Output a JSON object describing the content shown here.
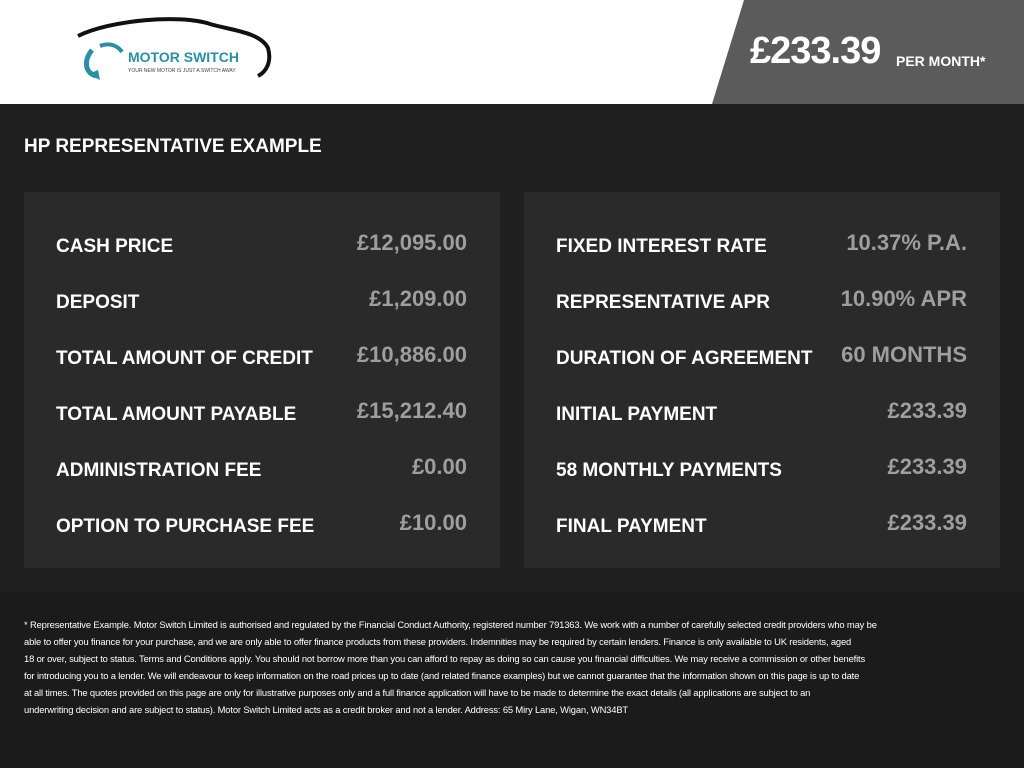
{
  "header": {
    "logo": {
      "name": "MOTOR SWITCH",
      "tagline": "YOUR NEW MOTOR IS JUST A SWITCH AWAY"
    },
    "price": "£233.39",
    "price_suffix": "PER MONTH*"
  },
  "section": {
    "title": "HP REPRESENTATIVE EXAMPLE",
    "left": [
      {
        "label": "CASH PRICE",
        "value": "£12,095.00"
      },
      {
        "label": "DEPOSIT",
        "value": "£1,209.00"
      },
      {
        "label": "TOTAL AMOUNT OF CREDIT",
        "value": "£10,886.00"
      },
      {
        "label": "TOTAL AMOUNT PAYABLE",
        "value": "£15,212.40"
      },
      {
        "label": "ADMINISTRATION FEE",
        "value": "£0.00"
      },
      {
        "label": "OPTION TO PURCHASE FEE",
        "value": "£10.00"
      }
    ],
    "right": [
      {
        "label": "FIXED INTEREST RATE",
        "value": "10.37% P.A."
      },
      {
        "label": "REPRESENTATIVE APR",
        "value": "10.90% APR"
      },
      {
        "label": "DURATION OF AGREEMENT",
        "value": "60 MONTHS"
      },
      {
        "label": "INITIAL PAYMENT",
        "value": "£233.39"
      },
      {
        "label": "58 MONTHLY PAYMENTS",
        "value": "£233.39"
      },
      {
        "label": "FINAL PAYMENT",
        "value": "£233.39"
      }
    ]
  },
  "disclaimer": [
    "* Representative Example. Motor Switch Limited  is authorised and regulated by the Financial Conduct Authority, registered number 791363. We work with a number of carefully selected credit providers who may be",
    "able to offer you finance for your purchase, and we are only able to offer finance products from these providers. Indemnities may be required by certain lenders. Finance is only available to UK residents, aged",
    "18 or over, subject to status. Terms and Conditions apply. You should not borrow more than you can afford to repay as doing so can cause you financial difficulties. We may receive a commission or other benefits",
    "for introducing you to a lender. We will endeavour to keep information on the road prices up to date (and related finance examples) but we cannot guarantee that the information shown on this page is up to date",
    "at all times. The quotes provided on this page are only for illustrative purposes only and a full finance application will have to be made to determine the exact details (all applications are subject to an",
    "underwriting decision and are subject to status). Motor Switch Limited  acts as a credit broker and not a lender. Address: 65 Miry Lane, Wigan, WN34BT"
  ]
}
